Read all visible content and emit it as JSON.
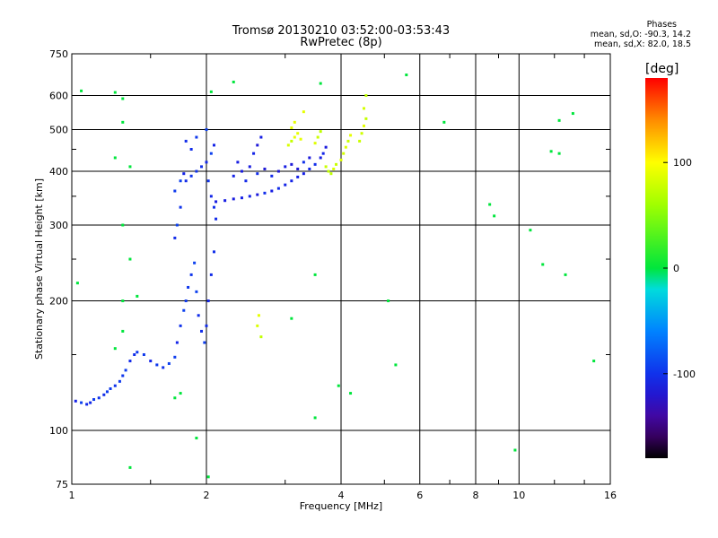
{
  "header": {
    "title_line1": "Tromsø 20130210 03:52:00-03:53:43",
    "title_line2": "RwPretec (8p)",
    "stats_heading": "Phases",
    "stats_o": "mean, sd,O: -90.3, 14.2",
    "stats_x": "mean, sd,X: 82.0, 18.5"
  },
  "colorbar": {
    "unit_label": "[deg]",
    "ticks": [
      "100",
      "0",
      "-100"
    ],
    "tick_values": [
      100,
      0,
      -100
    ],
    "range": [
      -180,
      180
    ]
  },
  "chart_data": {
    "type": "scatter",
    "xlabel": "Frequency [MHz]",
    "ylabel": "Stationary phase Virtual Height [km]",
    "x_scale": "log",
    "y_scale": "log",
    "xlim": [
      1,
      16
    ],
    "ylim": [
      75,
      750
    ],
    "x_ticks": [
      1,
      2,
      4,
      6,
      8,
      10,
      16
    ],
    "x_tick_labels": [
      "1",
      "2",
      "4",
      "6",
      "8",
      "10",
      "16"
    ],
    "y_ticks": [
      75,
      100,
      200,
      300,
      400,
      500,
      600,
      750
    ],
    "y_tick_labels": [
      "75",
      "100",
      "200",
      "300",
      "400",
      "500",
      "600",
      "750"
    ],
    "grid": true,
    "series": [
      {
        "trace": "o-mode-low",
        "phase": -100,
        "points": [
          [
            1.02,
            117
          ],
          [
            1.05,
            116
          ],
          [
            1.08,
            115
          ],
          [
            1.1,
            116
          ],
          [
            1.12,
            118
          ],
          [
            1.15,
            119
          ],
          [
            1.18,
            121
          ],
          [
            1.2,
            123
          ],
          [
            1.22,
            125
          ],
          [
            1.25,
            127
          ],
          [
            1.28,
            130
          ],
          [
            1.3,
            134
          ],
          [
            1.32,
            138
          ],
          [
            1.35,
            145
          ],
          [
            1.38,
            150
          ],
          [
            1.4,
            152
          ],
          [
            1.45,
            150
          ],
          [
            1.5,
            145
          ],
          [
            1.55,
            142
          ],
          [
            1.6,
            140
          ],
          [
            1.65,
            143
          ],
          [
            1.7,
            148
          ],
          [
            1.72,
            160
          ],
          [
            1.75,
            175
          ],
          [
            1.78,
            190
          ],
          [
            1.8,
            200
          ],
          [
            1.82,
            215
          ],
          [
            1.85,
            230
          ],
          [
            1.88,
            245
          ],
          [
            1.9,
            210
          ],
          [
            1.92,
            185
          ],
          [
            1.95,
            170
          ],
          [
            1.98,
            160
          ],
          [
            2.0,
            175
          ],
          [
            2.02,
            200
          ],
          [
            2.05,
            230
          ],
          [
            2.08,
            260
          ],
          [
            1.7,
            280
          ],
          [
            1.72,
            300
          ],
          [
            1.75,
            330
          ],
          [
            1.7,
            360
          ],
          [
            1.75,
            380
          ],
          [
            1.78,
            395
          ],
          [
            1.8,
            380
          ],
          [
            1.85,
            390
          ],
          [
            1.9,
            400
          ],
          [
            1.95,
            410
          ],
          [
            2.0,
            420
          ],
          [
            2.05,
            440
          ],
          [
            2.08,
            460
          ],
          [
            1.85,
            450
          ],
          [
            1.8,
            470
          ],
          [
            1.9,
            480
          ],
          [
            2.0,
            500
          ],
          [
            2.02,
            380
          ],
          [
            2.05,
            350
          ],
          [
            2.08,
            330
          ],
          [
            2.1,
            310
          ]
        ]
      },
      {
        "trace": "o-mode-high",
        "phase": -110,
        "points": [
          [
            2.1,
            340
          ],
          [
            2.2,
            342
          ],
          [
            2.3,
            345
          ],
          [
            2.4,
            347
          ],
          [
            2.5,
            350
          ],
          [
            2.6,
            353
          ],
          [
            2.7,
            356
          ],
          [
            2.8,
            360
          ],
          [
            2.9,
            365
          ],
          [
            3.0,
            372
          ],
          [
            3.1,
            380
          ],
          [
            3.2,
            388
          ],
          [
            3.3,
            395
          ],
          [
            3.4,
            405
          ],
          [
            3.5,
            415
          ],
          [
            3.6,
            430
          ],
          [
            3.65,
            440
          ],
          [
            3.7,
            455
          ],
          [
            2.3,
            390
          ],
          [
            2.4,
            400
          ],
          [
            2.5,
            410
          ],
          [
            2.35,
            420
          ],
          [
            2.45,
            380
          ],
          [
            2.6,
            395
          ],
          [
            2.7,
            405
          ],
          [
            2.8,
            390
          ],
          [
            2.9,
            400
          ],
          [
            3.0,
            410
          ],
          [
            3.1,
            415
          ],
          [
            3.2,
            405
          ],
          [
            3.3,
            420
          ],
          [
            3.4,
            430
          ],
          [
            2.55,
            440
          ],
          [
            2.6,
            460
          ],
          [
            2.65,
            480
          ]
        ]
      },
      {
        "trace": "x-mode",
        "phase": 82,
        "points": [
          [
            3.05,
            460
          ],
          [
            3.1,
            470
          ],
          [
            3.15,
            480
          ],
          [
            3.2,
            490
          ],
          [
            3.1,
            505
          ],
          [
            3.15,
            520
          ],
          [
            3.25,
            475
          ],
          [
            3.5,
            465
          ],
          [
            3.55,
            480
          ],
          [
            3.6,
            495
          ],
          [
            3.7,
            410
          ],
          [
            3.75,
            400
          ],
          [
            3.8,
            395
          ],
          [
            3.85,
            405
          ],
          [
            3.9,
            415
          ],
          [
            4.0,
            425
          ],
          [
            4.05,
            440
          ],
          [
            4.1,
            455
          ],
          [
            4.15,
            470
          ],
          [
            4.2,
            485
          ],
          [
            4.4,
            470
          ],
          [
            4.45,
            490
          ],
          [
            4.5,
            510
          ],
          [
            4.55,
            530
          ],
          [
            4.5,
            560
          ],
          [
            4.55,
            600
          ],
          [
            3.3,
            550
          ],
          [
            2.6,
            175
          ],
          [
            2.62,
            185
          ],
          [
            2.65,
            165
          ]
        ]
      },
      {
        "trace": "scattered",
        "phase": 0,
        "points": [
          [
            1.05,
            615
          ],
          [
            1.25,
            610
          ],
          [
            1.3,
            590
          ],
          [
            1.3,
            520
          ],
          [
            1.35,
            410
          ],
          [
            1.25,
            430
          ],
          [
            1.3,
            300
          ],
          [
            1.35,
            250
          ],
          [
            1.3,
            170
          ],
          [
            1.25,
            155
          ],
          [
            1.4,
            205
          ],
          [
            1.3,
            200
          ],
          [
            1.35,
            82
          ],
          [
            1.9,
            96
          ],
          [
            2.02,
            78
          ],
          [
            5.1,
            200
          ],
          [
            3.1,
            182
          ],
          [
            3.5,
            230
          ],
          [
            4.2,
            122
          ],
          [
            3.95,
            127
          ],
          [
            5.3,
            142
          ],
          [
            5.6,
            670
          ],
          [
            6.8,
            520
          ],
          [
            8.6,
            335
          ],
          [
            8.8,
            315
          ],
          [
            9.8,
            90
          ],
          [
            10.6,
            292
          ],
          [
            11.3,
            243
          ],
          [
            11.8,
            445
          ],
          [
            12.3,
            440
          ],
          [
            12.3,
            525
          ],
          [
            13.2,
            545
          ],
          [
            12.7,
            230
          ],
          [
            14.7,
            145
          ],
          [
            3.5,
            107
          ],
          [
            1.03,
            220
          ],
          [
            1.7,
            119
          ],
          [
            1.75,
            122
          ],
          [
            2.05,
            612
          ],
          [
            2.3,
            645
          ],
          [
            3.6,
            640
          ]
        ]
      }
    ]
  }
}
